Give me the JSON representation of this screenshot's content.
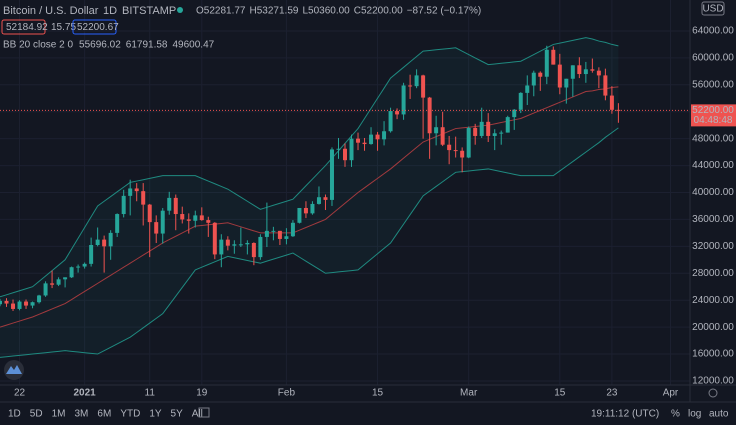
{
  "chart_data": {
    "type": "candlestick",
    "legend": {
      "symbol": "Bitcoin / U.S. Dollar",
      "interval": "1D",
      "exchange": "BITSTAMP",
      "ohlc": [
        {
          "key": "O",
          "value": "52281.77"
        },
        {
          "key": "H",
          "value": "53271.59"
        },
        {
          "key": "L",
          "value": "50360.00"
        },
        {
          "key": "C",
          "value": "52200.00"
        }
      ],
      "change": "−87.52 (−0.17%)",
      "bid": "52184.92",
      "spread": "15.75",
      "ask": "52200.67",
      "indicator": "BB 20 close 2 0",
      "indicator_values": [
        "55696.02",
        "61791.58",
        "49600.47"
      ]
    },
    "currency": "USD",
    "x": [
      "2020-12-19",
      "2020-12-20",
      "2020-12-21",
      "2020-12-22",
      "2020-12-23",
      "2020-12-24",
      "2020-12-25",
      "2020-12-26",
      "2020-12-27",
      "2020-12-28",
      "2020-12-29",
      "2020-12-30",
      "2020-12-31",
      "2021-01-01",
      "2021-01-02",
      "2021-01-03",
      "2021-01-04",
      "2021-01-05",
      "2021-01-06",
      "2021-01-07",
      "2021-01-08",
      "2021-01-09",
      "2021-01-10",
      "2021-01-11",
      "2021-01-12",
      "2021-01-13",
      "2021-01-14",
      "2021-01-15",
      "2021-01-16",
      "2021-01-17",
      "2021-01-18",
      "2021-01-19",
      "2021-01-20",
      "2021-01-21",
      "2021-01-22",
      "2021-01-23",
      "2021-01-24",
      "2021-01-25",
      "2021-01-26",
      "2021-01-27",
      "2021-01-28",
      "2021-01-29",
      "2021-01-30",
      "2021-01-31",
      "2021-02-01",
      "2021-02-02",
      "2021-02-03",
      "2021-02-04",
      "2021-02-05",
      "2021-02-06",
      "2021-02-07",
      "2021-02-08",
      "2021-02-09",
      "2021-02-10",
      "2021-02-11",
      "2021-02-12",
      "2021-02-13",
      "2021-02-14",
      "2021-02-15",
      "2021-02-16",
      "2021-02-17",
      "2021-02-18",
      "2021-02-19",
      "2021-02-20",
      "2021-02-21",
      "2021-02-22",
      "2021-02-23",
      "2021-02-24",
      "2021-02-25",
      "2021-02-26",
      "2021-02-27",
      "2021-02-28",
      "2021-03-01",
      "2021-03-02",
      "2021-03-03",
      "2021-03-04",
      "2021-03-05",
      "2021-03-06",
      "2021-03-07",
      "2021-03-08",
      "2021-03-09",
      "2021-03-10",
      "2021-03-11",
      "2021-03-12",
      "2021-03-13",
      "2021-03-14",
      "2021-03-15",
      "2021-03-16",
      "2021-03-17",
      "2021-03-18",
      "2021-03-19",
      "2021-03-20",
      "2021-03-21",
      "2021-03-22",
      "2021-03-23",
      "2021-03-24"
    ],
    "open": [
      23400,
      23900,
      23500,
      22700,
      23800,
      23200,
      23700,
      24700,
      26500,
      26300,
      27100,
      27400,
      28900,
      29000,
      29400,
      32200,
      33000,
      32000,
      34000,
      36800,
      39500,
      40600,
      40200,
      38200,
      35600,
      33900,
      37300,
      39200,
      36800,
      36000,
      35800,
      36600,
      35900,
      35500,
      30800,
      33000,
      32100,
      32300,
      32300,
      32500,
      30400,
      33400,
      34300,
      34300,
      33100,
      33500,
      35500,
      37700,
      36900,
      38300,
      39300,
      38900,
      46400,
      46500,
      44800,
      48000,
      47400,
      47200,
      48600,
      47900,
      49100,
      52100,
      51600,
      55900,
      55800,
      57400,
      54100,
      48800,
      49700,
      47100,
      46300,
      46200,
      45200,
      49600,
      48400,
      50500,
      48400,
      48800,
      48900,
      51200,
      52300,
      54800,
      55900,
      57800,
      57200,
      61200,
      59000,
      55600,
      56900,
      58900,
      57600,
      58300,
      58100,
      57400,
      54400,
      52281.77
    ],
    "high": [
      24200,
      24300,
      24100,
      24000,
      24100,
      23800,
      24800,
      26800,
      28400,
      27400,
      27400,
      29000,
      29300,
      29600,
      33300,
      34800,
      33600,
      34400,
      36900,
      40400,
      41900,
      41400,
      41400,
      38300,
      36600,
      37700,
      40100,
      39700,
      37900,
      36900,
      37300,
      37800,
      36400,
      35600,
      33800,
      33500,
      32900,
      34800,
      32900,
      32600,
      33800,
      38500,
      34900,
      34300,
      34700,
      35900,
      37700,
      38700,
      38700,
      40900,
      39700,
      46700,
      48100,
      47300,
      48600,
      48900,
      48100,
      49700,
      49000,
      50600,
      52600,
      52500,
      56300,
      57500,
      58300,
      57500,
      54200,
      51400,
      52000,
      48400,
      48300,
      46700,
      49800,
      50200,
      52600,
      51800,
      49400,
      49200,
      51400,
      52400,
      54900,
      57400,
      58100,
      58000,
      61800,
      61700,
      60600,
      56900,
      58900,
      60100,
      59400,
      59900,
      58600,
      58400,
      55800,
      53271.59
    ],
    "low": [
      23100,
      23000,
      22400,
      22500,
      22700,
      22800,
      23500,
      24500,
      25800,
      26100,
      25900,
      27300,
      28100,
      28700,
      29000,
      32000,
      28100,
      30000,
      33400,
      36300,
      36600,
      38700,
      35100,
      30400,
      32500,
      32400,
      36700,
      34400,
      35400,
      33900,
      34800,
      35800,
      33400,
      30100,
      28900,
      31400,
      30900,
      31900,
      30800,
      29200,
      30000,
      31900,
      32900,
      32200,
      32300,
      33400,
      35400,
      36200,
      36700,
      38200,
      37400,
      38000,
      45000,
      43800,
      43800,
      46300,
      46200,
      47100,
      46200,
      47000,
      48900,
      50900,
      50800,
      53900,
      55500,
      48000,
      45000,
      47000,
      46900,
      44200,
      45200,
      43000,
      45100,
      47100,
      48100,
      47500,
      46300,
      47100,
      48900,
      49300,
      51800,
      53000,
      54300,
      55100,
      56100,
      59000,
      54600,
      53200,
      54200,
      57000,
      56300,
      57800,
      55500,
      53700,
      51700,
      50360
    ],
    "close": [
      23900,
      23500,
      22700,
      23800,
      23200,
      23700,
      24700,
      26500,
      26300,
      27100,
      27400,
      28900,
      29000,
      29400,
      32200,
      33000,
      32000,
      34000,
      36800,
      39500,
      40600,
      40200,
      38200,
      35600,
      33900,
      37300,
      39200,
      36800,
      36000,
      35800,
      36600,
      35900,
      35500,
      30800,
      33000,
      32100,
      32300,
      32300,
      32500,
      30400,
      33400,
      34300,
      34300,
      33100,
      33500,
      35500,
      37700,
      36900,
      38300,
      39300,
      38900,
      46400,
      46500,
      44800,
      48000,
      47400,
      47200,
      48600,
      47900,
      49100,
      52100,
      51600,
      55900,
      55800,
      57400,
      54100,
      48800,
      49700,
      47100,
      46300,
      46200,
      45200,
      49600,
      48400,
      50500,
      48400,
      48800,
      48900,
      51200,
      52300,
      54800,
      55900,
      57800,
      57200,
      61200,
      59000,
      55600,
      56900,
      58900,
      57600,
      58300,
      58100,
      57400,
      54400,
      52287.52,
      52200
    ],
    "up_color": "#26a69a",
    "down_color": "#ef5350",
    "bb": {
      "upper": [
        24500,
        24800,
        25100,
        25400,
        25700,
        26000,
        26800,
        27600,
        28400,
        29200,
        30000,
        31600,
        33200,
        34800,
        36400,
        38000,
        38700,
        39400,
        40100,
        40800,
        41500,
        41700,
        41900,
        42100,
        42300,
        42500,
        42500,
        42500,
        42500,
        42500,
        42500,
        42100,
        41700,
        41300,
        40900,
        40500,
        39900,
        39300,
        38700,
        38100,
        37500,
        37800,
        38100,
        38400,
        38700,
        39000,
        40000,
        41000,
        42000,
        43000,
        44000,
        45100,
        46200,
        47300,
        48400,
        49500,
        51000,
        52500,
        54000,
        55500,
        57000,
        57800,
        58600,
        59400,
        60200,
        61000,
        61100,
        61200,
        61300,
        61400,
        61500,
        61000,
        60500,
        60000,
        59500,
        59000,
        59100,
        59200,
        59300,
        59400,
        59500,
        60000,
        60500,
        61000,
        61500,
        62000,
        62200,
        62400,
        62600,
        62800,
        63000,
        62800,
        62500,
        62300,
        62000,
        61791.58
      ],
      "basis": [
        20000,
        20300,
        20600,
        20900,
        21200,
        21500,
        21900,
        22300,
        22700,
        23100,
        23500,
        24100,
        24700,
        25300,
        25900,
        26500,
        27100,
        27700,
        28300,
        28900,
        29500,
        30100,
        30700,
        31300,
        31900,
        32500,
        33000,
        33500,
        34000,
        34500,
        35000,
        35100,
        35200,
        35300,
        35400,
        35500,
        35200,
        34900,
        34600,
        34300,
        34000,
        34000,
        34000,
        34000,
        34000,
        34000,
        34400,
        34800,
        35200,
        35600,
        36000,
        36800,
        37600,
        38400,
        39200,
        40000,
        40700,
        41400,
        42100,
        42800,
        43500,
        44300,
        45100,
        45900,
        46700,
        47500,
        47900,
        48300,
        48700,
        49100,
        49500,
        49600,
        49700,
        49800,
        49900,
        50000,
        50200,
        50400,
        50600,
        50800,
        51000,
        51400,
        51800,
        52200,
        52600,
        53000,
        53400,
        53800,
        54200,
        54600,
        55000,
        55100,
        55300,
        55400,
        55600,
        55696.02
      ],
      "lower": [
        15500,
        15600,
        15700,
        15800,
        15900,
        16000,
        16100,
        16200,
        16300,
        16400,
        16500,
        16400,
        16300,
        16200,
        16100,
        16000,
        16500,
        17000,
        17500,
        18000,
        18500,
        19200,
        19900,
        20600,
        21300,
        22000,
        23300,
        24600,
        25900,
        27200,
        28500,
        28900,
        29300,
        29700,
        30100,
        30500,
        30300,
        30100,
        29900,
        29700,
        29500,
        29800,
        30100,
        30400,
        30700,
        31000,
        30400,
        29800,
        29200,
        28600,
        28000,
        28100,
        28200,
        28300,
        28400,
        28500,
        29300,
        30100,
        30900,
        31700,
        32500,
        33900,
        35300,
        36700,
        38100,
        39500,
        40200,
        40900,
        41600,
        42300,
        43000,
        43100,
        43200,
        43300,
        43400,
        43500,
        43300,
        43100,
        42900,
        42700,
        42500,
        42500,
        42500,
        42500,
        42500,
        42500,
        43200,
        43900,
        44600,
        45300,
        46000,
        46700,
        47400,
        48200,
        48900,
        49600.47
      ],
      "band_color": "#1f8a80",
      "basis_color": "#a23a3e",
      "fill": "rgba(38,166,154,0.06)"
    },
    "last_price": {
      "value": 52200,
      "label": "52200.00"
    },
    "countdown": "04:48:48",
    "xlim": [
      "2020-12-19",
      "2021-04-04"
    ],
    "xticks": [
      {
        "value": "2020-12-22",
        "label": "22"
      },
      {
        "value": "2021-01-01",
        "label": "2021"
      },
      {
        "value": "2021-01-11",
        "label": "11"
      },
      {
        "value": "2021-01-19",
        "label": "19"
      },
      {
        "value": "2021-02-01",
        "label": "Feb"
      },
      {
        "value": "2021-02-15",
        "label": "15"
      },
      {
        "value": "2021-03-01",
        "label": "Mar"
      },
      {
        "value": "2021-03-15",
        "label": "15"
      },
      {
        "value": "2021-03-23",
        "label": "23"
      },
      {
        "value": "2021-04-01",
        "label": "Apr"
      }
    ],
    "ylim": [
      11400,
      68600
    ],
    "yticks": [
      {
        "value": 12000,
        "label": "12000.00"
      },
      {
        "value": 16000,
        "label": "16000.00"
      },
      {
        "value": 20000,
        "label": "20000.00"
      },
      {
        "value": 24000,
        "label": "24000.00"
      },
      {
        "value": 28000,
        "label": "28000.00"
      },
      {
        "value": 32000,
        "label": "32000.00"
      },
      {
        "value": 36000,
        "label": "36000.00"
      },
      {
        "value": 40000,
        "label": "40000.00"
      },
      {
        "value": 44000,
        "label": "44000.00"
      },
      {
        "value": 48000,
        "label": "48000.00"
      },
      {
        "value": 52000,
        "label": "52000.00"
      },
      {
        "value": 56000,
        "label": "56000.00"
      },
      {
        "value": 60000,
        "label": "60000.00"
      },
      {
        "value": 64000,
        "label": "64000.00"
      }
    ],
    "grid": true,
    "toolbar": {
      "ranges": [
        "1D",
        "5D",
        "1M",
        "3M",
        "6M",
        "YTD",
        "1Y",
        "5Y",
        "All"
      ],
      "clock": "19:11:12 (UTC)",
      "options": [
        "%",
        "log",
        "auto"
      ]
    }
  }
}
